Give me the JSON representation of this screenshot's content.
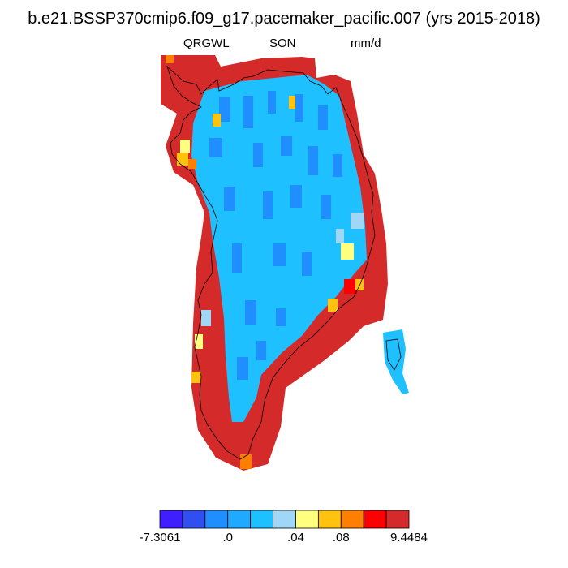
{
  "title": "b.e21.BSSP370cmip6.f09_g17.pacemaker_pacific.007 (yrs 2015-2018)",
  "subtitle": {
    "left": "QRGWL",
    "center": "SON",
    "right": "mm/d"
  },
  "colorbar": {
    "colors": [
      "#3f1fff",
      "#2f4fef",
      "#1f8fff",
      "#1faaff",
      "#1fc0ff",
      "#a0d6f6",
      "#ffff80",
      "#ffc20f",
      "#ff7f00",
      "#ff0000",
      "#d42a2a"
    ],
    "labels": [
      "-7.3061",
      ".0",
      ".04",
      ".08",
      "9.4484"
    ]
  },
  "map_legend": {
    "negative": "#1fc0ff",
    "near_zero": "#1f8fff",
    "positive_small": "#ffff80",
    "positive_mid": "#ffc20f",
    "positive_high": "#ff7f00",
    "max": "#d42a2a"
  }
}
